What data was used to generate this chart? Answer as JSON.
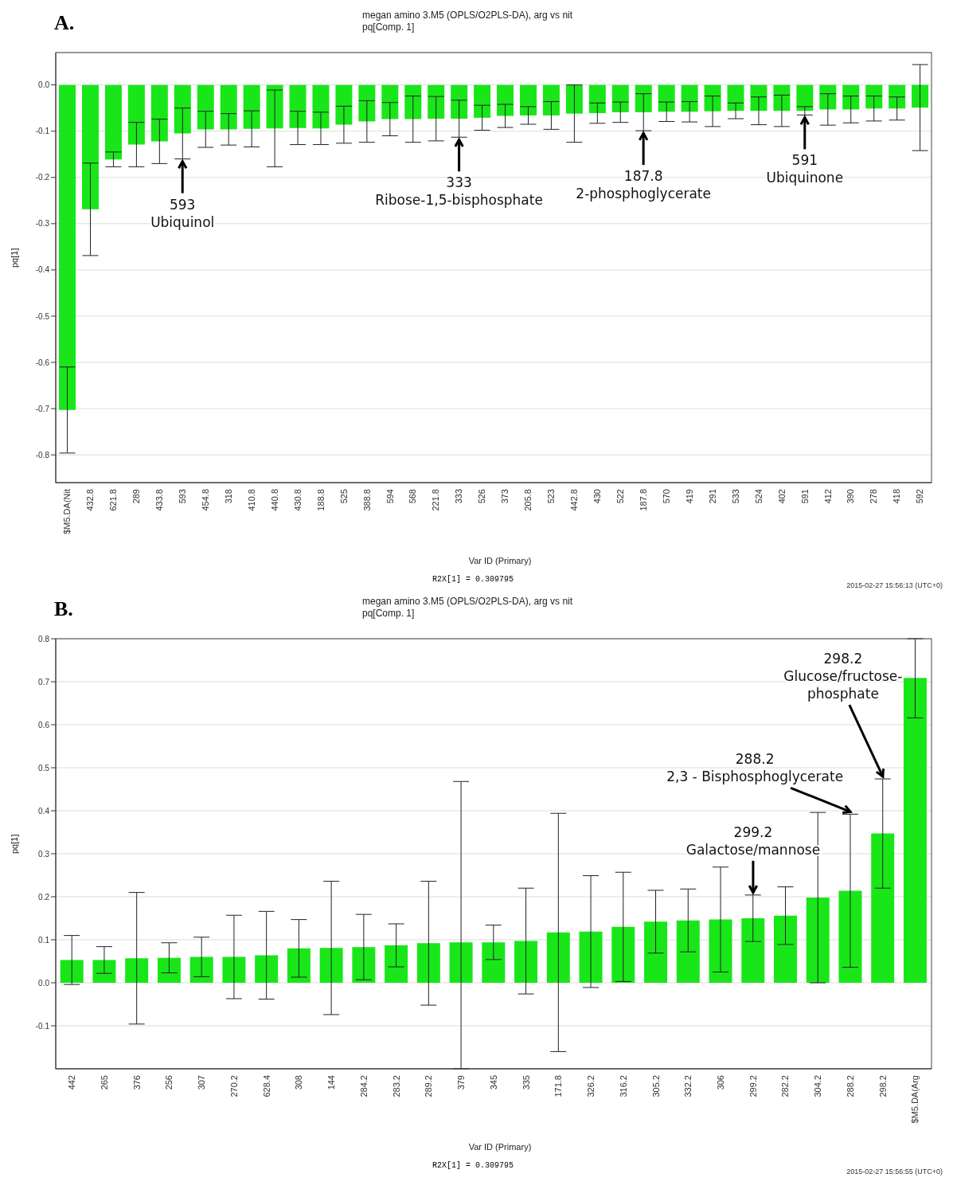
{
  "chart_data": [
    {
      "type": "bar",
      "title": "megan amino 3.M5 (OPLS/O2PLS-DA), arg vs nit",
      "subtitle": "pq[Comp. 1]",
      "xlabel": "Var ID (Primary)",
      "ylabel": "pq[1]",
      "categories": [
        "$M5.DA(Nit",
        "432.8",
        "621.8",
        "289",
        "433.8",
        "593",
        "454.8",
        "318",
        "410.8",
        "440.8",
        "430.8",
        "188.8",
        "525",
        "388.8",
        "594",
        "568",
        "221.8",
        "333",
        "526",
        "373",
        "205.8",
        "523",
        "442.8",
        "430",
        "522",
        "187.8",
        "570",
        "419",
        "291",
        "533",
        "524",
        "402",
        "591",
        "412",
        "390",
        "278",
        "418",
        "592"
      ],
      "series": [
        {
          "color": "#19e619",
          "values": [
            -0.703,
            -0.269,
            -0.161,
            -0.129,
            -0.122,
            -0.105,
            -0.096,
            -0.096,
            -0.095,
            -0.094,
            -0.093,
            -0.094,
            -0.086,
            -0.079,
            -0.074,
            -0.074,
            -0.073,
            -0.073,
            -0.071,
            -0.067,
            -0.066,
            -0.066,
            -0.062,
            -0.061,
            -0.059,
            -0.059,
            -0.058,
            -0.058,
            -0.057,
            -0.056,
            -0.056,
            -0.056,
            -0.056,
            -0.053,
            -0.053,
            -0.051,
            -0.051,
            -0.049
          ],
          "errors": [
            0.093,
            0.1,
            0.016,
            0.048,
            0.048,
            0.055,
            0.039,
            0.034,
            0.039,
            0.083,
            0.036,
            0.035,
            0.04,
            0.045,
            0.036,
            0.05,
            0.048,
            0.04,
            0.027,
            0.025,
            0.019,
            0.03,
            0.062,
            0.022,
            0.022,
            0.04,
            0.021,
            0.022,
            0.033,
            0.017,
            0.03,
            0.034,
            0.009,
            0.034,
            0.029,
            0.027,
            0.025,
            0.093
          ]
        }
      ],
      "ylim": [
        -0.86,
        0.07
      ],
      "yticks": [
        -0.8,
        -0.7,
        -0.6,
        -0.5,
        -0.4,
        -0.3,
        -0.2,
        -0.1,
        {
          "value": 0,
          "label": "0.0"
        }
      ],
      "grid": "y",
      "legend": false,
      "annotations": [
        "A.",
        "R2X[1] = 0.309795",
        "2015-02-27 15:56:13 (UTC+0)",
        {
          "text": "593\nUbiquinol",
          "x": "593",
          "y": -0.16
        },
        {
          "text": "333\nRibose-1,5-bisphosphate",
          "x": "333",
          "y": -0.113
        },
        {
          "text": "187.8\n2-phosphoglycerate",
          "x": "187.8",
          "y": -0.099
        },
        {
          "text": "591\nUbiquinone",
          "x": "591",
          "y": -0.065
        }
      ]
    },
    {
      "type": "bar",
      "title": "megan amino 3.M5 (OPLS/O2PLS-DA), arg vs nit",
      "subtitle": "pq[Comp. 1]",
      "xlabel": "Var ID (Primary)",
      "ylabel": "pq[1]",
      "categories": [
        "442",
        "265",
        "376",
        "256",
        "307",
        "270.2",
        "628.4",
        "308",
        "144",
        "284.2",
        "283.2",
        "289.2",
        "379",
        "345",
        "335",
        "171.8",
        "326.2",
        "316.2",
        "305.2",
        "332.2",
        "306",
        "299.2",
        "282.2",
        "304.2",
        "288.2",
        "298.2",
        "$M5.DA(Arg"
      ],
      "series": [
        {
          "color": "#19e619",
          "values": [
            0.053,
            0.053,
            0.057,
            0.058,
            0.06,
            0.06,
            0.064,
            0.08,
            0.081,
            0.083,
            0.087,
            0.092,
            0.094,
            0.094,
            0.097,
            0.117,
            0.119,
            0.13,
            0.142,
            0.145,
            0.147,
            0.15,
            0.156,
            0.198,
            0.214,
            0.347,
            0.709
          ],
          "errors": [
            0.057,
            0.031,
            0.153,
            0.035,
            0.046,
            0.097,
            0.102,
            0.067,
            0.155,
            0.076,
            0.05,
            0.144,
            [
              -0.2,
              0.468
            ],
            0.04,
            0.123,
            0.277,
            0.13,
            0.127,
            0.073,
            0.073,
            0.122,
            0.054,
            0.067,
            0.198,
            0.178,
            0.127,
            [
              0.616,
              0.8
            ]
          ]
        }
      ],
      "ylim": [
        -0.2,
        0.8
      ],
      "yticks": [
        -0.1,
        {
          "value": 0,
          "label": "0.0"
        },
        0.1,
        0.2,
        0.3,
        0.4,
        0.5,
        0.6,
        0.7,
        0.8
      ],
      "grid": "y",
      "legend": false,
      "annotations": [
        "B.",
        "R2X[1] = 0.309795",
        "2015-02-27 15:56:55 (UTC+0)",
        {
          "text": "299.2\nGalactose/mannose",
          "x": "299.2",
          "y": 0.204
        },
        {
          "text": "288.2\n2,3 - Bisphosphoglycerate",
          "x": "288.2",
          "y": 0.392
        },
        {
          "text": "298.2\nGlucose/fructose-\nphosphate",
          "x": "298.2",
          "y": 0.474
        }
      ]
    }
  ]
}
